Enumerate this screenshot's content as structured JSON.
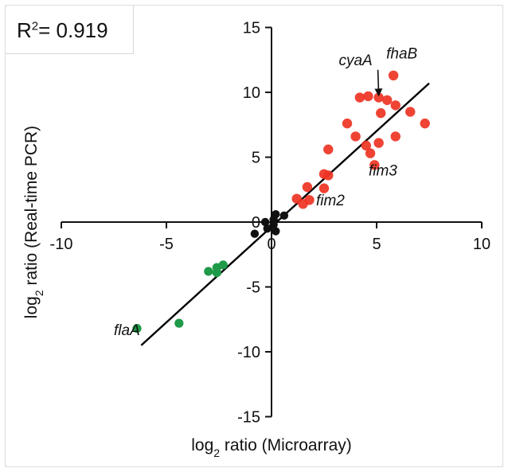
{
  "r2_box": {
    "label": "R",
    "superscript": "2",
    "value": "= 0.919"
  },
  "chart_data": {
    "type": "scatter",
    "title": "",
    "xlabel": {
      "prefix": "log",
      "subscript": "2",
      "suffix": " ratio (Microarray)"
    },
    "ylabel": {
      "prefix": "log",
      "subscript": "2",
      "suffix": " ratio (Real-time PCR)"
    },
    "xlim": [
      -10,
      10
    ],
    "ylim": [
      -15,
      15
    ],
    "x_ticks": [
      -10,
      -5,
      0,
      5,
      10
    ],
    "y_ticks": [
      -15,
      -10,
      -5,
      0,
      5,
      10,
      15
    ],
    "grid": false,
    "colors": {
      "up": "#ee3323",
      "down": "#1e9a48",
      "neutral": "#111111",
      "line": "#000000"
    },
    "series": [
      {
        "group": "up",
        "points": [
          [
            5.8,
            11.3
          ],
          [
            4.6,
            9.7
          ],
          [
            5.1,
            9.6
          ],
          [
            5.5,
            9.4
          ],
          [
            4.2,
            9.6
          ],
          [
            5.9,
            9.0
          ],
          [
            5.2,
            8.4
          ],
          [
            6.6,
            8.5
          ],
          [
            7.3,
            7.6
          ],
          [
            3.6,
            7.6
          ],
          [
            4.0,
            6.6
          ],
          [
            5.1,
            6.1
          ],
          [
            4.5,
            5.9
          ],
          [
            5.9,
            6.6
          ],
          [
            4.7,
            5.3
          ],
          [
            2.7,
            5.6
          ],
          [
            4.9,
            4.4
          ],
          [
            2.5,
            3.7
          ],
          [
            2.7,
            3.6
          ],
          [
            1.7,
            2.7
          ],
          [
            2.5,
            2.6
          ],
          [
            1.2,
            1.8
          ],
          [
            1.8,
            1.7
          ],
          [
            1.5,
            1.4
          ]
        ]
      },
      {
        "group": "neutral",
        "points": [
          [
            0.2,
            0.6
          ],
          [
            0.6,
            0.5
          ],
          [
            0.1,
            0.2
          ],
          [
            -0.3,
            0.0
          ],
          [
            0.1,
            -0.2
          ],
          [
            -0.2,
            -0.5
          ],
          [
            0.2,
            -0.7
          ],
          [
            -0.8,
            -0.9
          ]
        ]
      },
      {
        "group": "down",
        "points": [
          [
            -2.3,
            -3.3
          ],
          [
            -2.6,
            -3.5
          ],
          [
            -3.0,
            -3.8
          ],
          [
            -2.6,
            -3.9
          ],
          [
            -4.4,
            -7.8
          ],
          [
            -6.4,
            -8.2
          ]
        ]
      }
    ],
    "fit_line": {
      "x": [
        -6.2,
        7.5
      ],
      "y": [
        -9.5,
        10.7
      ]
    },
    "annotations": [
      {
        "text": "fhaB",
        "x": 6.2,
        "y": 12.6
      },
      {
        "text": "cyaA",
        "x": 4.0,
        "y": 12.1,
        "arrow_to": [
          5.1,
          9.8
        ]
      },
      {
        "text": "fim3",
        "x": 5.3,
        "y": 3.6
      },
      {
        "text": "fim2",
        "x": 2.8,
        "y": 1.3
      },
      {
        "text": "flaA",
        "x": -7.5,
        "y": -8.7
      }
    ]
  }
}
